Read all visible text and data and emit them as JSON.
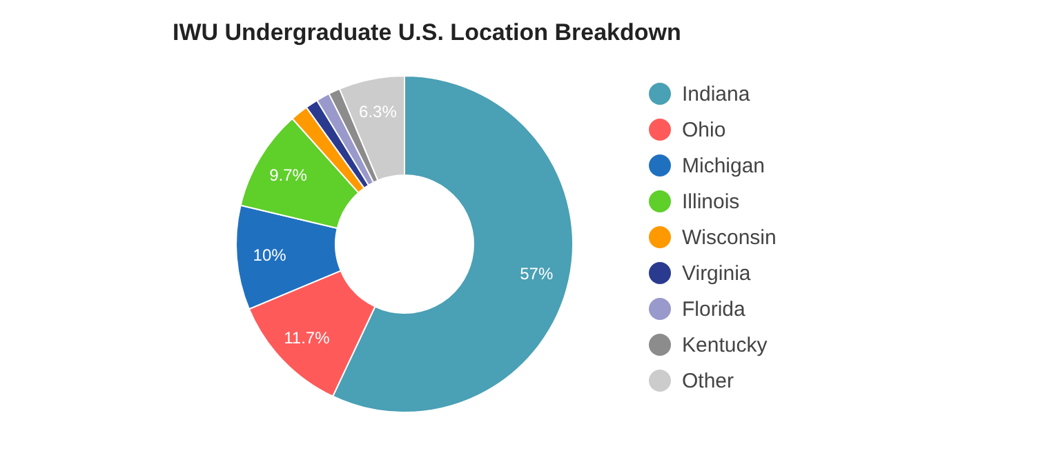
{
  "chart_data": {
    "type": "donut",
    "title": "IWU Undergraduate U.S. Location Breakdown",
    "categories": [
      "Indiana",
      "Ohio",
      "Michigan",
      "Illinois",
      "Wisconsin",
      "Virginia",
      "Florida",
      "Kentucky",
      "Other"
    ],
    "values": [
      57,
      11.7,
      10,
      9.7,
      1.7,
      1.2,
      1.3,
      1.1,
      6.3
    ],
    "value_labels": [
      "57%",
      "11.7%",
      "10%",
      "9.7%",
      null,
      null,
      null,
      null,
      "6.3%"
    ],
    "colors": [
      "#4aa0b5",
      "#ff5a5a",
      "#2070c0",
      "#5fcf2a",
      "#ff9900",
      "#2a3a8f",
      "#9999cc",
      "#8c8c8c",
      "#cccccc"
    ],
    "legend": "right"
  }
}
